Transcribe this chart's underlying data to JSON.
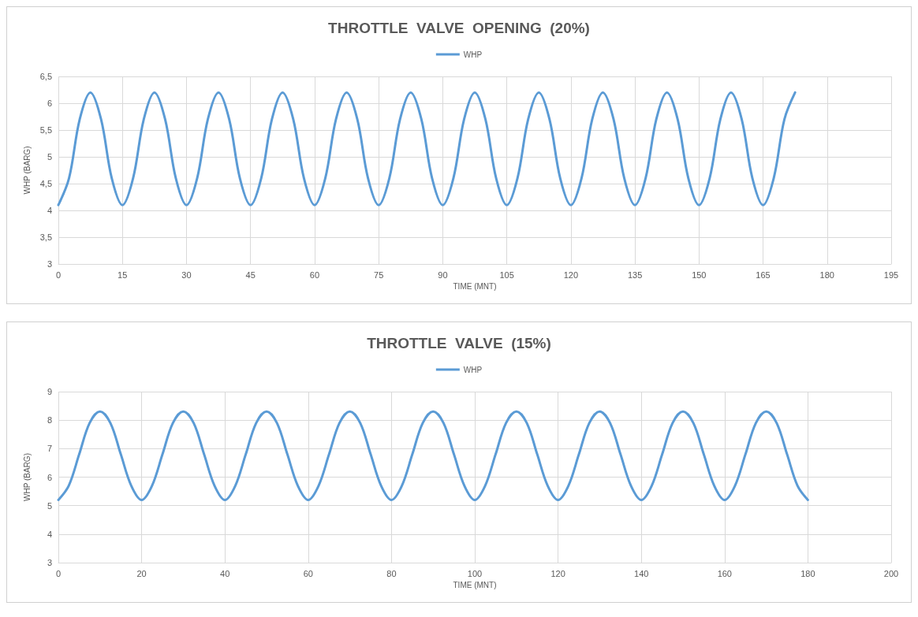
{
  "chart_data": [
    {
      "type": "line",
      "title": "THROTTLE  VALVE  OPENING  (20%)",
      "xlabel": "TIME (MNT)",
      "ylabel": "WHP (BARG)",
      "legend": "top",
      "grid": true,
      "marker": "none",
      "line_style": "solid",
      "xlim": [
        0,
        195
      ],
      "xticks": [
        0,
        15,
        30,
        45,
        60,
        75,
        90,
        105,
        120,
        135,
        150,
        165,
        180,
        195
      ],
      "ylim": [
        3,
        6.5
      ],
      "yticks": [
        3,
        {
          "value": 3.5,
          "label": "3,5"
        },
        4,
        {
          "value": 4.5,
          "label": "4,5"
        },
        5,
        {
          "value": 5.5,
          "label": "5,5"
        },
        6,
        {
          "value": 6.5,
          "label": "6,5"
        }
      ],
      "series": [
        {
          "name": "WHP",
          "color": "#5b9bd5",
          "x": [
            0,
            2.5,
            5,
            7.5,
            10,
            12.5,
            15,
            17.5,
            20,
            22.5,
            25,
            27.5,
            30,
            32.5,
            35,
            37.5,
            40,
            42.5,
            45,
            47.5,
            50,
            52.5,
            55,
            57.5,
            60,
            62.5,
            65,
            67.5,
            70,
            72.5,
            75,
            77.5,
            80,
            82.5,
            85,
            87.5,
            90,
            92.5,
            95,
            97.5,
            100,
            102.5,
            105,
            107.5,
            110,
            112.5,
            115,
            117.5,
            120,
            122.5,
            125,
            127.5,
            130,
            132.5,
            135,
            137.5,
            140,
            142.5,
            145,
            147.5,
            150,
            152.5,
            155,
            157.5,
            160,
            162.5,
            165,
            167.5,
            170,
            172.5
          ],
          "values": [
            4.1,
            4.6,
            5.7,
            6.2,
            5.7,
            4.6,
            4.1,
            4.6,
            5.7,
            6.2,
            5.7,
            4.6,
            4.1,
            4.6,
            5.7,
            6.2,
            5.7,
            4.6,
            4.1,
            4.6,
            5.7,
            6.2,
            5.7,
            4.6,
            4.1,
            4.6,
            5.7,
            6.2,
            5.7,
            4.6,
            4.1,
            4.6,
            5.7,
            6.2,
            5.7,
            4.6,
            4.1,
            4.6,
            5.7,
            6.2,
            5.7,
            4.6,
            4.1,
            4.6,
            5.7,
            6.2,
            5.7,
            4.6,
            4.1,
            4.6,
            5.7,
            6.2,
            5.7,
            4.6,
            4.1,
            4.6,
            5.7,
            6.2,
            5.7,
            4.6,
            4.1,
            4.6,
            5.7,
            6.2,
            5.7,
            4.6,
            4.1,
            4.6,
            5.7,
            6.2
          ]
        }
      ]
    },
    {
      "type": "line",
      "title": "THROTTLE  VALVE  (15%)",
      "xlabel": "TIME (MNT)",
      "ylabel": "WHP (BARG)",
      "legend": "top",
      "grid": true,
      "marker": "none",
      "line_style": "solid",
      "xlim": [
        0,
        200
      ],
      "xticks": [
        0,
        20,
        40,
        60,
        80,
        100,
        120,
        140,
        160,
        180,
        200
      ],
      "ylim": [
        3,
        9
      ],
      "yticks": [
        3,
        4,
        5,
        6,
        7,
        8,
        9
      ],
      "series": [
        {
          "name": "WHP",
          "color": "#5b9bd5",
          "x": [
            0,
            2.5,
            5,
            7.5,
            10,
            12.5,
            15,
            17.5,
            20,
            22.5,
            25,
            27.5,
            30,
            32.5,
            35,
            37.5,
            40,
            42.5,
            45,
            47.5,
            50,
            52.5,
            55,
            57.5,
            60,
            62.5,
            65,
            67.5,
            70,
            72.5,
            75,
            77.5,
            80,
            82.5,
            85,
            87.5,
            90,
            92.5,
            95,
            97.5,
            100,
            102.5,
            105,
            107.5,
            110,
            112.5,
            115,
            117.5,
            120,
            122.5,
            125,
            127.5,
            130,
            132.5,
            135,
            137.5,
            140,
            142.5,
            145,
            147.5,
            150,
            152.5,
            155,
            157.5,
            160,
            162.5,
            165,
            167.5,
            170,
            172.5,
            175,
            177.5,
            180
          ],
          "values": [
            5.2,
            5.7,
            6.8,
            7.9,
            8.3,
            7.9,
            6.8,
            5.7,
            5.2,
            5.7,
            6.8,
            7.9,
            8.3,
            7.9,
            6.8,
            5.7,
            5.2,
            5.7,
            6.8,
            7.9,
            8.3,
            7.9,
            6.8,
            5.7,
            5.2,
            5.7,
            6.8,
            7.9,
            8.3,
            7.9,
            6.8,
            5.7,
            5.2,
            5.7,
            6.8,
            7.9,
            8.3,
            7.9,
            6.8,
            5.7,
            5.2,
            5.7,
            6.8,
            7.9,
            8.3,
            7.9,
            6.8,
            5.7,
            5.2,
            5.7,
            6.8,
            7.9,
            8.3,
            7.9,
            6.8,
            5.7,
            5.2,
            5.7,
            6.8,
            7.9,
            8.3,
            7.9,
            6.8,
            5.7,
            5.2,
            5.7,
            6.8,
            7.9,
            8.3,
            7.9,
            6.8,
            5.7,
            5.2
          ]
        }
      ]
    }
  ]
}
